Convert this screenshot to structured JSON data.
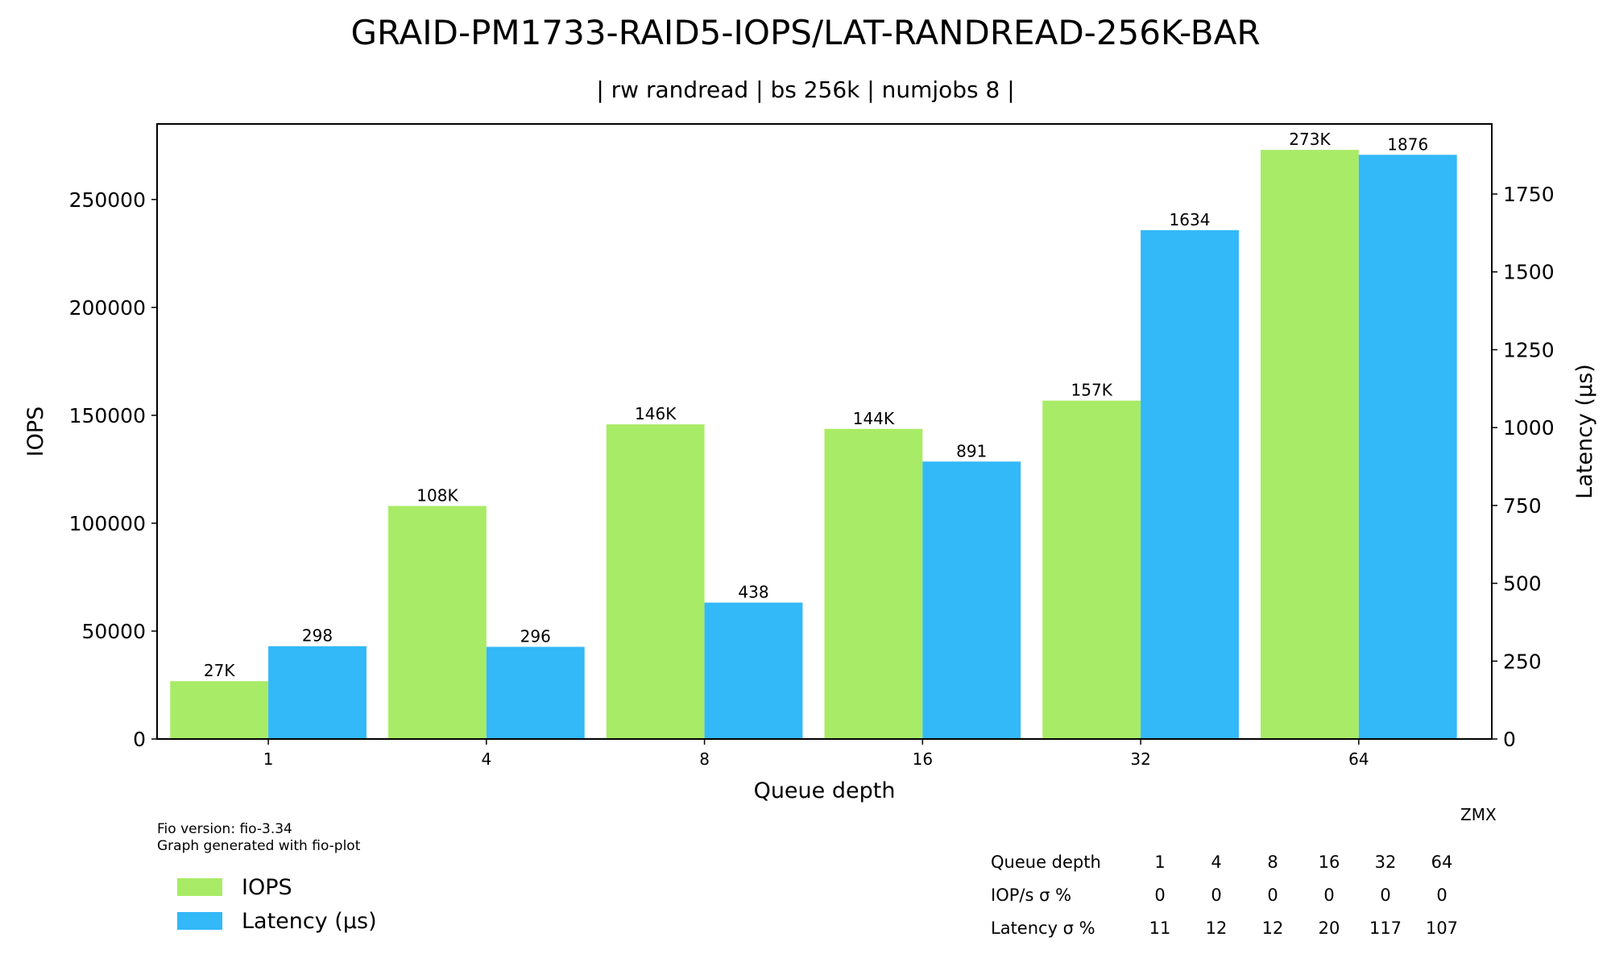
{
  "title": "GRAID-PM1733-RAID5-IOPS/LAT-RANDREAD-256K-BAR",
  "subtitle": "| rw randread | bs 256k | numjobs 8 |",
  "footer": {
    "line1": "Fio version: fio-3.34",
    "line2": "Graph generated with fio-plot"
  },
  "watermark": "ZMX",
  "colors": {
    "iops": "#a8eb66",
    "latency": "#33b8f8"
  },
  "chart_data": {
    "type": "bar",
    "categories": [
      "1",
      "4",
      "8",
      "16",
      "32",
      "64"
    ],
    "xlabel": "Queue depth",
    "ylabel": "IOPS",
    "y2label": "Latency (µs)",
    "ylim": [
      0,
      285000
    ],
    "y2lim": [
      0,
      1975
    ],
    "yticks": [
      0,
      50000,
      100000,
      150000,
      200000,
      250000
    ],
    "y2ticks": [
      0,
      250,
      500,
      750,
      1000,
      1250,
      1500,
      1750
    ],
    "series": [
      {
        "name": "IOPS",
        "axis": "left",
        "color": "#a8eb66",
        "values": [
          26800,
          108000,
          145800,
          143700,
          156800,
          273000
        ],
        "labels": [
          "27K",
          "108K",
          "146K",
          "144K",
          "157K",
          "273K"
        ]
      },
      {
        "name": "Latency (µs)",
        "axis": "right",
        "color": "#33b8f8",
        "values": [
          298,
          296,
          438,
          891,
          1634,
          1876
        ],
        "labels": [
          "298",
          "296",
          "438",
          "891",
          "1634",
          "1876"
        ]
      }
    ],
    "legend": {
      "position": "bottom-left",
      "items": [
        {
          "label": "IOPS",
          "color": "#a8eb66"
        },
        {
          "label": "Latency (µs)",
          "color": "#33b8f8"
        }
      ]
    },
    "stats_table": {
      "header_label": "Queue depth",
      "columns": [
        "1",
        "4",
        "8",
        "16",
        "32",
        "64"
      ],
      "rows": [
        {
          "label": "IOP/s σ %",
          "values": [
            "0",
            "0",
            "0",
            "0",
            "0",
            "0"
          ]
        },
        {
          "label": "Latency σ %",
          "values": [
            "11",
            "12",
            "12",
            "20",
            "117",
            "107"
          ]
        }
      ]
    }
  }
}
